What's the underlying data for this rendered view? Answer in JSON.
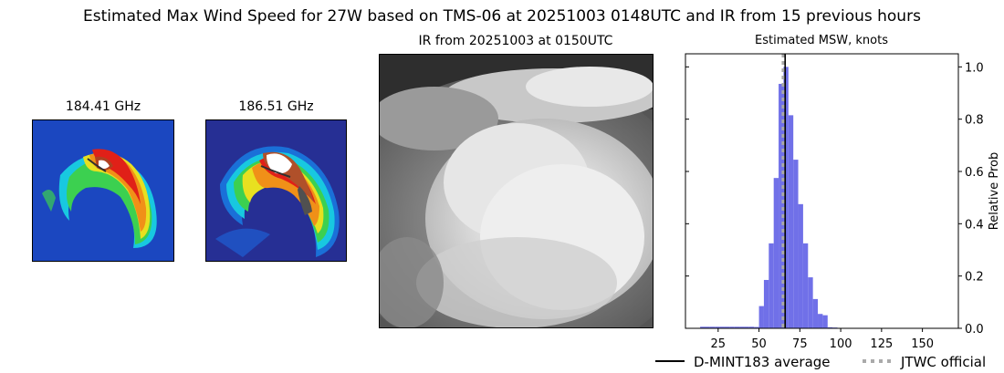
{
  "figure": {
    "title": "Estimated Max Wind Speed for 27W based on TMS-06 at 20251003 0148UTC and IR from 15 previous hours"
  },
  "microwave_panels": [
    {
      "title": "184.41 GHz"
    },
    {
      "title": "186.51 GHz"
    }
  ],
  "ir_panel": {
    "title": "IR from 20251003 at 0150UTC"
  },
  "chart_data": {
    "type": "bar",
    "title": "Estimated MSW, knots",
    "xlabel": "",
    "ylabel": "Relative Prob",
    "xlim": [
      5,
      172
    ],
    "ylim": [
      0,
      1.05
    ],
    "xticks": [
      25,
      50,
      75,
      100,
      125,
      150
    ],
    "yticks": [
      0.0,
      0.2,
      0.4,
      0.6,
      0.8,
      1.0
    ],
    "bin_width": 3,
    "bins_start": [
      14,
      17,
      20,
      23,
      26,
      29,
      32,
      35,
      38,
      41,
      44,
      47,
      50,
      53,
      56,
      59,
      62,
      65,
      68,
      71,
      74,
      77,
      80,
      83,
      86,
      89,
      92,
      95
    ],
    "values": [
      0.006,
      0.006,
      0.006,
      0.006,
      0.006,
      0.006,
      0.006,
      0.006,
      0.006,
      0.006,
      0.006,
      0.005,
      0.085,
      0.185,
      0.325,
      0.575,
      0.935,
      1.0,
      0.815,
      0.645,
      0.475,
      0.325,
      0.195,
      0.112,
      0.055,
      0.05,
      0.004,
      0.003
    ],
    "bar_color": "#7070e8",
    "average_line": {
      "x": 66,
      "label": "D-MINT183 average",
      "color": "#000000"
    },
    "official_line": {
      "x": 65,
      "label": "JTWC official",
      "color": "#aaaaaa"
    },
    "grid": false,
    "legend_position": "bottom-right"
  }
}
